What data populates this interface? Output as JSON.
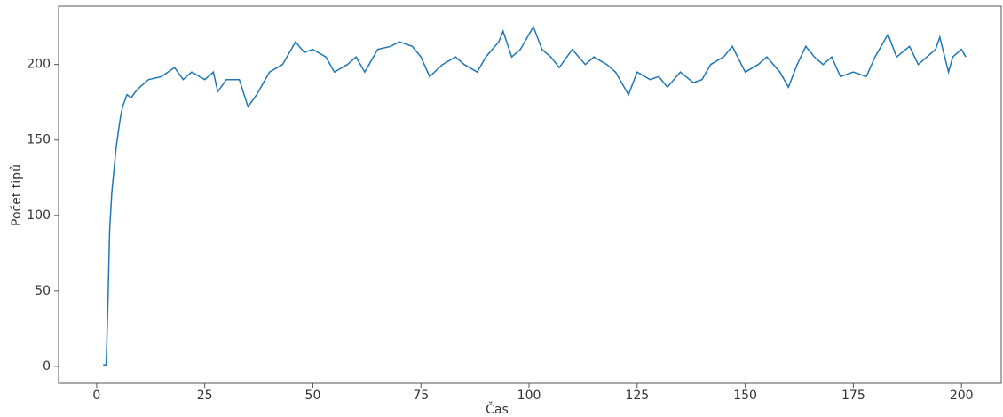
{
  "chart_data": {
    "type": "line",
    "xlabel": "Čas",
    "ylabel": "Počet tipů",
    "x": [
      1.5,
      2.2,
      2.6,
      3,
      3.5,
      4,
      4.5,
      5,
      5.5,
      6,
      7,
      8,
      9,
      10,
      12,
      15,
      18,
      20,
      22,
      25,
      27,
      28,
      30,
      33,
      35,
      37,
      40,
      43,
      46,
      48,
      50,
      53,
      55,
      58,
      60,
      62,
      65,
      68,
      70,
      73,
      75,
      77,
      80,
      83,
      85,
      88,
      90,
      93,
      94,
      96,
      98,
      101,
      103,
      105,
      107,
      110,
      113,
      115,
      118,
      120,
      122,
      123,
      125,
      128,
      130,
      132,
      135,
      138,
      140,
      142,
      145,
      147,
      150,
      153,
      155,
      158,
      160,
      162,
      164,
      166,
      168,
      170,
      172,
      175,
      178,
      180,
      182,
      183,
      185,
      188,
      190,
      192,
      194,
      195,
      197,
      198,
      200,
      201
    ],
    "values": [
      1,
      1,
      40,
      90,
      115,
      130,
      145,
      155,
      165,
      172,
      180,
      178,
      182,
      185,
      190,
      192,
      198,
      190,
      195,
      190,
      195,
      182,
      190,
      190,
      172,
      180,
      195,
      200,
      215,
      208,
      210,
      205,
      195,
      200,
      205,
      195,
      210,
      212,
      215,
      212,
      205,
      192,
      200,
      205,
      200,
      195,
      205,
      215,
      222,
      205,
      210,
      225,
      210,
      205,
      198,
      210,
      200,
      205,
      200,
      195,
      185,
      180,
      195,
      190,
      192,
      185,
      195,
      188,
      190,
      200,
      205,
      212,
      195,
      200,
      205,
      195,
      185,
      200,
      212,
      205,
      200,
      205,
      192,
      195,
      192,
      205,
      215,
      220,
      205,
      212,
      200,
      205,
      210,
      218,
      195,
      205,
      210,
      205
    ],
    "color": "#1f77b4",
    "xlim": [
      -8.8,
      209.2
    ],
    "xticks": [
      0,
      25,
      50,
      75,
      100,
      125,
      150,
      175,
      200
    ],
    "ylim": [
      -11.2,
      238.6
    ],
    "yticks": [
      0,
      50,
      100,
      150,
      200
    ]
  }
}
